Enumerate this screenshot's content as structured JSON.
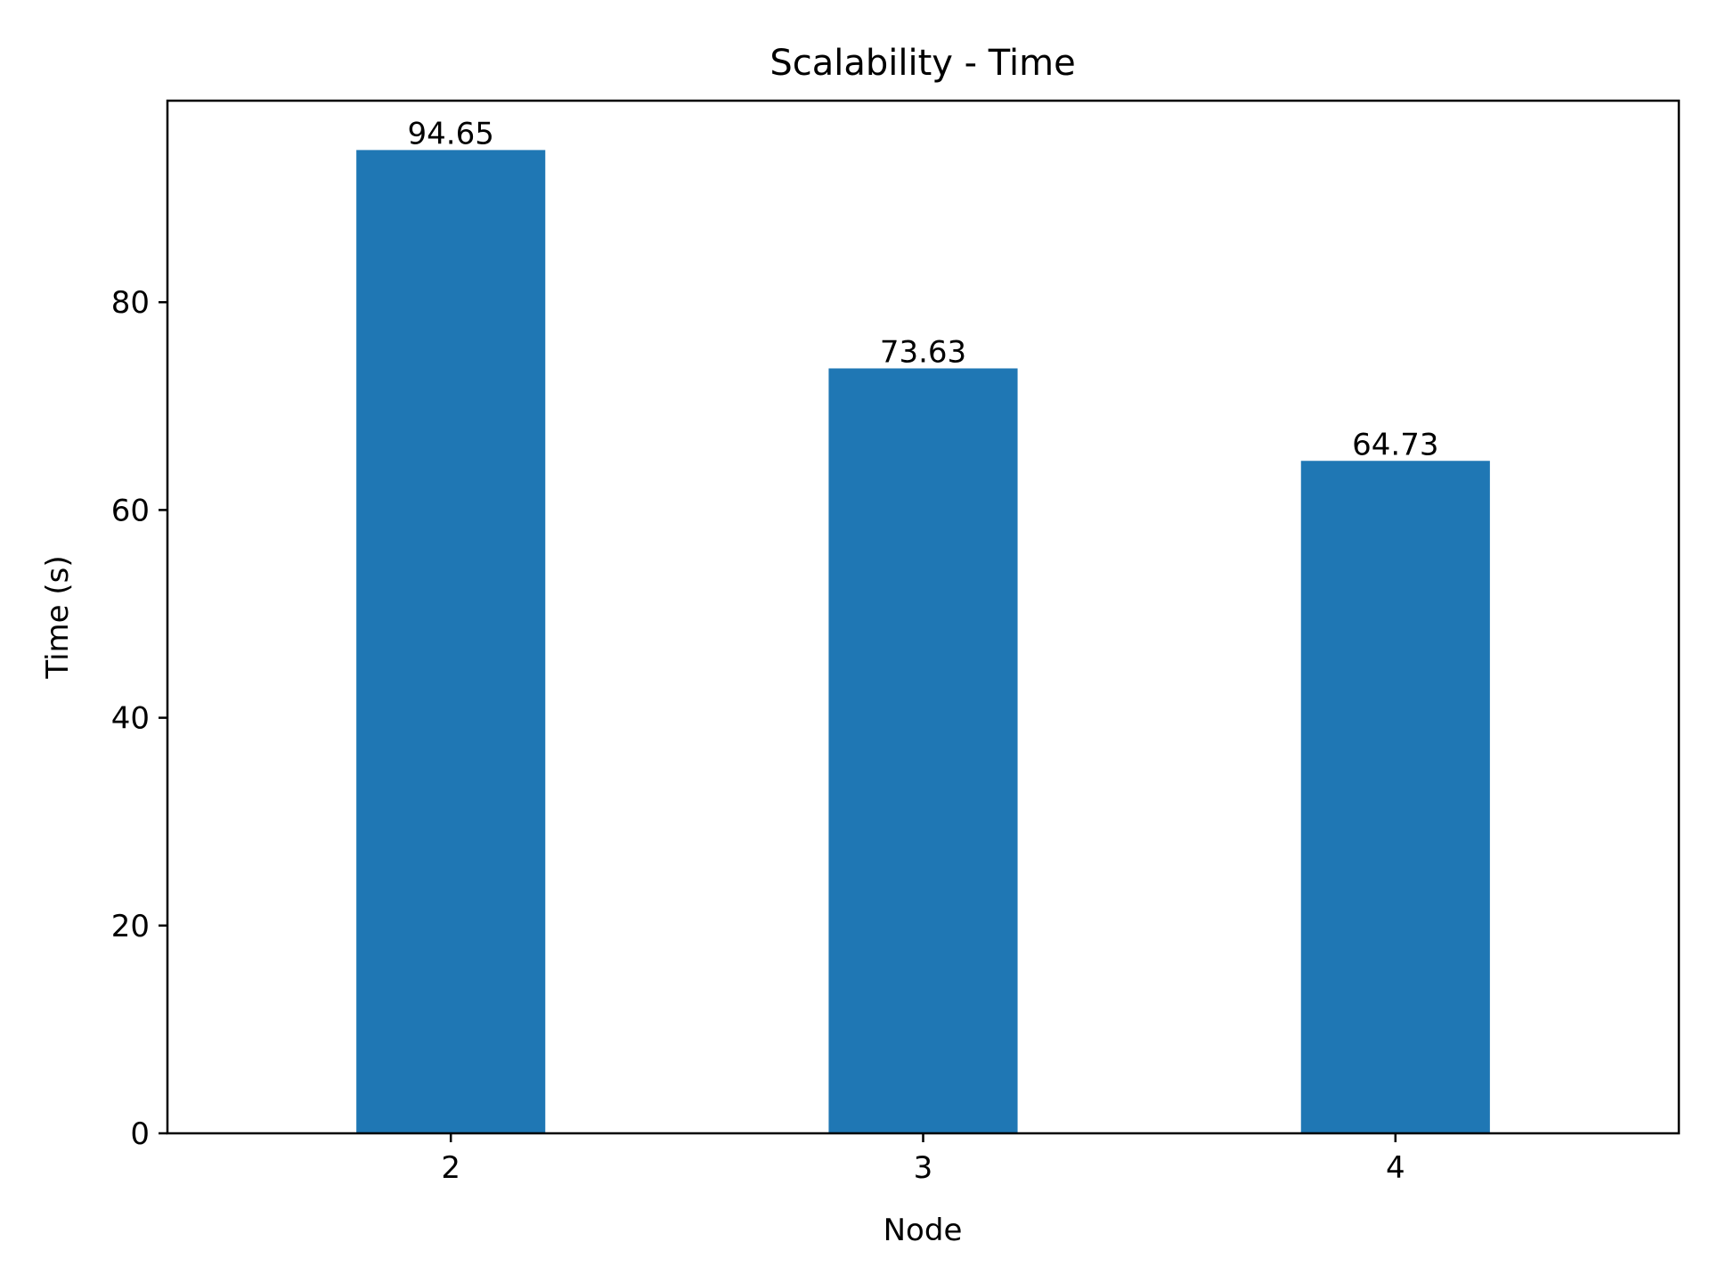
{
  "chart_data": {
    "type": "bar",
    "title": "Scalability - Time",
    "xlabel": "Node",
    "ylabel": "Time (s)",
    "categories": [
      "2",
      "3",
      "4"
    ],
    "values": [
      94.65,
      73.63,
      64.73
    ],
    "data_labels": [
      "94.65",
      "73.63",
      "64.73"
    ],
    "ylim": [
      0,
      99.4
    ],
    "yticks": [
      0,
      20,
      40,
      60,
      80
    ],
    "ytick_labels": [
      "0",
      "20",
      "40",
      "60",
      "80"
    ],
    "grid": false,
    "legend": "none",
    "bar_color": "#1f77b4"
  }
}
